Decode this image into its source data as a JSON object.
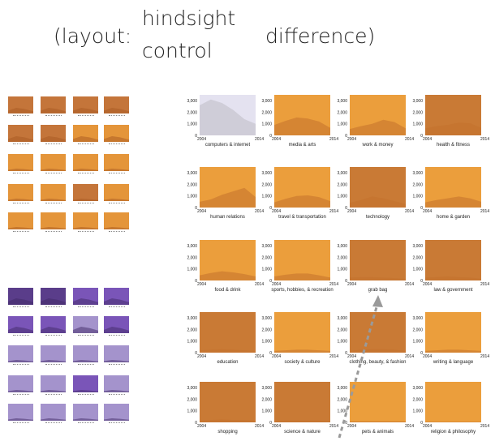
{
  "header": {
    "layout_label": "(layout:",
    "option_top": "hindsight",
    "option_bottom": "control",
    "difference_label": "difference)"
  },
  "colors": {
    "orange_light": "#eb9e3c",
    "orange_mid": "#e4953a",
    "orange_dark": "#c97a35",
    "orange_darker": "#c4753a",
    "area_fill": "#c2712c",
    "selected_bg": "#e4e2f0",
    "selected_area": "#cfcdd8",
    "purple_dark": "#5a3d8a",
    "purple_mid": "#7a55b8",
    "purple_light": "#a493cc",
    "arrow": "#9a9a9a"
  },
  "chart_data": {
    "type": "area",
    "x_ticks": [
      "2004",
      "2014"
    ],
    "y_ticks": [
      "0",
      "1,000",
      "2,000",
      "3,000"
    ],
    "ylim": [
      0,
      3500
    ],
    "panels": [
      {
        "title": "computers & internet",
        "bg": "selected",
        "values": [
          2600,
          3100,
          2800,
          2200,
          1400,
          1000
        ]
      },
      {
        "title": "media & arts",
        "bg": "orange_light",
        "values": [
          900,
          1250,
          1550,
          1450,
          1200,
          650
        ]
      },
      {
        "title": "work & money",
        "bg": "orange_light",
        "values": [
          550,
          800,
          1000,
          1350,
          1150,
          600
        ]
      },
      {
        "title": "health & fitness",
        "bg": "orange_dark",
        "values": [
          600,
          800,
          900,
          1100,
          1050,
          650
        ]
      },
      {
        "title": "human relations",
        "bg": "orange_light",
        "values": [
          500,
          700,
          1100,
          1400,
          1700,
          900
        ]
      },
      {
        "title": "travel & transportation",
        "bg": "orange_light",
        "values": [
          450,
          750,
          1000,
          1050,
          900,
          550
        ]
      },
      {
        "title": "technology",
        "bg": "orange_dark",
        "values": [
          400,
          650,
          950,
          800,
          550,
          300
        ]
      },
      {
        "title": "home & garden",
        "bg": "orange_light",
        "values": [
          450,
          650,
          800,
          950,
          800,
          500
        ]
      },
      {
        "title": "food & drink",
        "bg": "orange_light",
        "values": [
          450,
          650,
          800,
          700,
          550,
          350
        ]
      },
      {
        "title": "sports, hobbies, & recreation",
        "bg": "orange_light",
        "values": [
          350,
          500,
          600,
          600,
          450,
          250
        ]
      },
      {
        "title": "grab bag",
        "bg": "orange_dark",
        "values": [
          250,
          300,
          300,
          250,
          200,
          150
        ]
      },
      {
        "title": "law & government",
        "bg": "orange_dark",
        "values": [
          250,
          300,
          350,
          300,
          250,
          150
        ]
      },
      {
        "title": "education",
        "bg": "orange_dark",
        "values": [
          200,
          250,
          300,
          250,
          200,
          150
        ]
      },
      {
        "title": "society & culture",
        "bg": "orange_light",
        "values": [
          150,
          200,
          250,
          250,
          200,
          150
        ]
      },
      {
        "title": "clothing, beauty, & fashion",
        "bg": "orange_dark",
        "values": [
          150,
          250,
          300,
          300,
          250,
          150
        ]
      },
      {
        "title": "writing & language",
        "bg": "orange_light",
        "values": [
          150,
          200,
          250,
          250,
          200,
          150
        ]
      },
      {
        "title": "shopping",
        "bg": "orange_dark",
        "values": [
          150,
          200,
          250,
          200,
          200,
          150
        ]
      },
      {
        "title": "science & nature",
        "bg": "orange_dark",
        "values": [
          100,
          150,
          150,
          150,
          150,
          100
        ]
      },
      {
        "title": "pets & animals",
        "bg": "orange_light",
        "values": [
          100,
          100,
          100,
          100,
          100,
          100
        ]
      },
      {
        "title": "religion & philosophy",
        "bg": "orange_light",
        "values": [
          50,
          50,
          50,
          50,
          50,
          50
        ]
      }
    ]
  },
  "thumbnails": {
    "hindsight_bgs": [
      "orange_darker",
      "orange_darker",
      "orange_darker",
      "orange_darker",
      "orange_darker",
      "orange_darker",
      "orange_mid",
      "orange_mid",
      "orange_mid",
      "orange_mid",
      "orange_mid",
      "orange_mid",
      "orange_mid",
      "orange_mid",
      "orange_darker",
      "orange_mid",
      "orange_mid",
      "orange_mid",
      "orange_mid",
      "orange_mid"
    ],
    "control_bgs": [
      "purple_dark",
      "purple_dark",
      "purple_mid",
      "purple_mid",
      "purple_mid",
      "purple_mid",
      "purple_light",
      "purple_mid",
      "purple_light",
      "purple_light",
      "purple_light",
      "purple_light",
      "purple_light",
      "purple_light",
      "purple_mid",
      "purple_light",
      "purple_light",
      "purple_light",
      "purple_light",
      "purple_light"
    ]
  }
}
